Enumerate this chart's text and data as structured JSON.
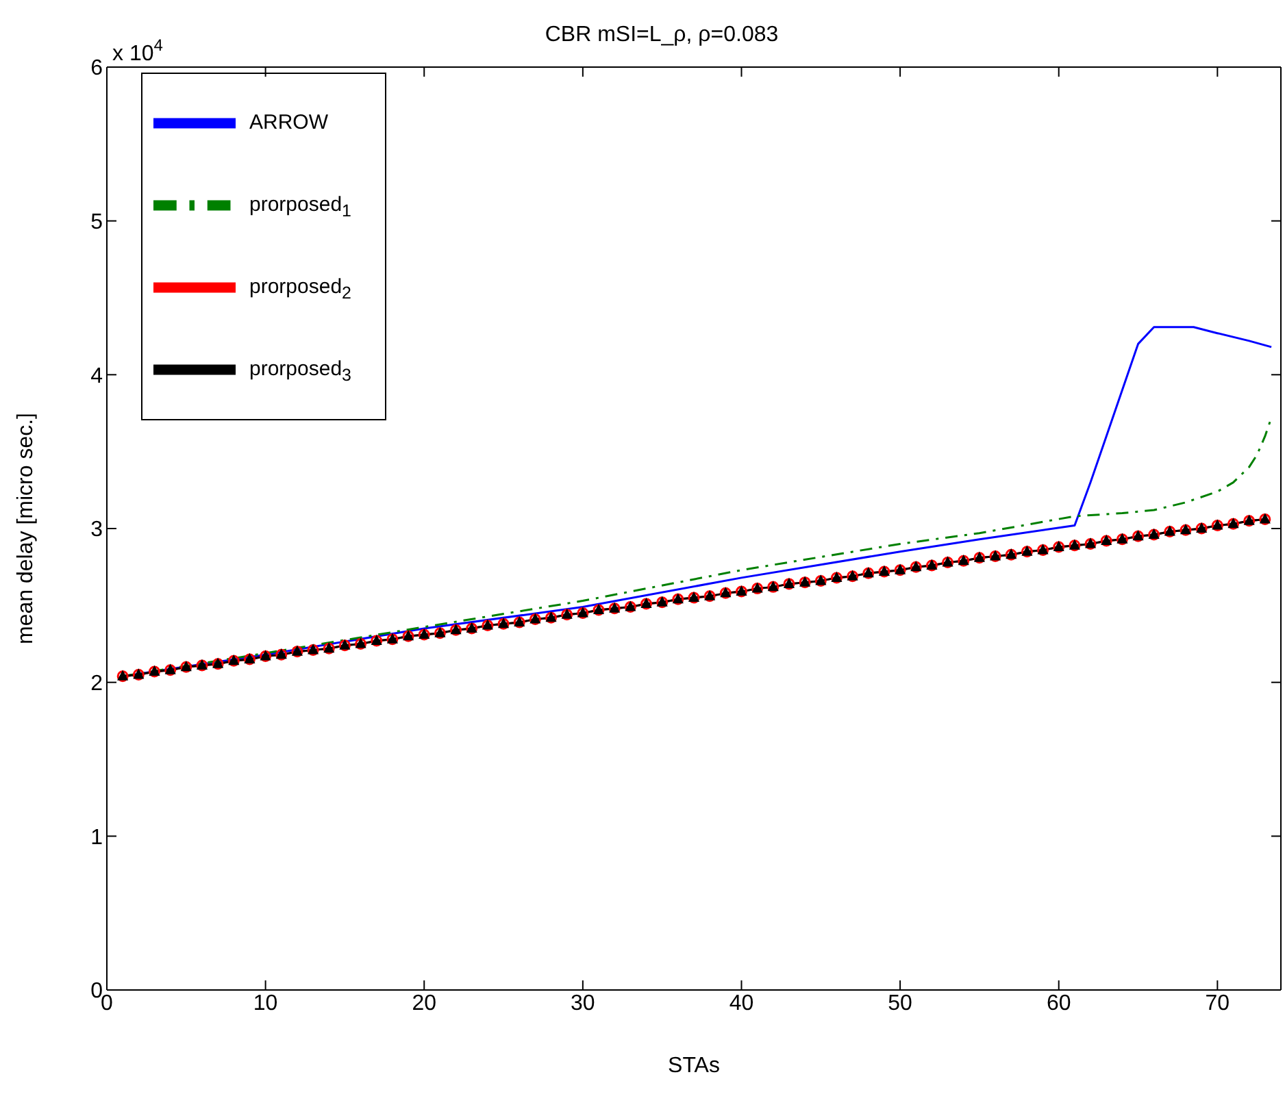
{
  "chart_data": {
    "type": "line",
    "title": "CBR mSI=L_ρ, ρ=0.083",
    "xlabel": "STAs",
    "ylabel": "mean delay [micro sec.]",
    "annotations": [
      "x 10$^{4}$"
    ],
    "xlim": [
      0,
      74
    ],
    "xticks": [
      0,
      10,
      20,
      30,
      40,
      50,
      60,
      70
    ],
    "ylim": [
      0,
      6
    ],
    "yticks": [
      0,
      1,
      2,
      3,
      4,
      5,
      6
    ],
    "grid": false,
    "legend": "top left",
    "series": [
      {
        "name": "ARROW",
        "color": "#0000ff",
        "marker": "none",
        "line_style": "solid",
        "x": [
          1,
          10,
          20,
          30,
          40,
          50,
          55,
          61,
          62,
          63,
          64,
          65,
          66,
          67,
          68.5,
          70,
          72,
          73.4
        ],
        "values": [
          2.04,
          2.18,
          2.35,
          2.49,
          2.68,
          2.85,
          2.93,
          3.02,
          3.3,
          3.6,
          3.9,
          4.2,
          4.31,
          4.31,
          4.31,
          4.27,
          4.22,
          4.18
        ]
      },
      {
        "name": "prorposed$_{1}$",
        "color": "#008000",
        "marker": "none",
        "line_style": "dashed",
        "x": [
          1,
          10,
          20,
          30,
          40,
          50,
          55,
          61,
          64,
          66,
          68,
          70,
          71,
          72,
          72.5,
          73,
          73.4
        ],
        "values": [
          2.04,
          2.19,
          2.36,
          2.53,
          2.73,
          2.9,
          2.97,
          3.08,
          3.1,
          3.12,
          3.17,
          3.24,
          3.3,
          3.4,
          3.48,
          3.6,
          3.72
        ]
      },
      {
        "name": "prorposed$_{2}$",
        "color": "#ff0000",
        "marker": "circle",
        "line_style": "solid",
        "x": [
          1,
          2,
          3,
          4,
          5,
          6,
          7,
          8,
          9,
          10,
          11,
          12,
          13,
          14,
          15,
          16,
          17,
          18,
          19,
          20,
          21,
          22,
          23,
          24,
          25,
          26,
          27,
          28,
          29,
          30,
          31,
          32,
          33,
          34,
          35,
          36,
          37,
          38,
          39,
          40,
          41,
          42,
          43,
          44,
          45,
          46,
          47,
          48,
          49,
          50,
          51,
          52,
          53,
          54,
          55,
          56,
          57,
          58,
          59,
          60,
          61,
          62,
          63,
          64,
          65,
          66,
          67,
          68,
          69,
          70,
          71,
          72,
          73
        ],
        "values": [
          2.04,
          2.05,
          2.07,
          2.08,
          2.1,
          2.11,
          2.12,
          2.14,
          2.15,
          2.17,
          2.18,
          2.2,
          2.21,
          2.22,
          2.24,
          2.25,
          2.27,
          2.28,
          2.3,
          2.31,
          2.32,
          2.34,
          2.35,
          2.37,
          2.38,
          2.39,
          2.41,
          2.42,
          2.44,
          2.45,
          2.47,
          2.48,
          2.49,
          2.51,
          2.52,
          2.54,
          2.55,
          2.56,
          2.58,
          2.59,
          2.61,
          2.62,
          2.64,
          2.65,
          2.66,
          2.68,
          2.69,
          2.71,
          2.72,
          2.73,
          2.75,
          2.76,
          2.78,
          2.79,
          2.81,
          2.82,
          2.83,
          2.85,
          2.86,
          2.88,
          2.89,
          2.9,
          2.92,
          2.93,
          2.95,
          2.96,
          2.98,
          2.99,
          3,
          3.02,
          3.03,
          3.05,
          3.06
        ]
      },
      {
        "name": "prorposed$_{3}$",
        "color": "#000000",
        "marker": "triangle",
        "line_style": "solid",
        "x": [
          1,
          2,
          3,
          4,
          5,
          6,
          7,
          8,
          9,
          10,
          11,
          12,
          13,
          14,
          15,
          16,
          17,
          18,
          19,
          20,
          21,
          22,
          23,
          24,
          25,
          26,
          27,
          28,
          29,
          30,
          31,
          32,
          33,
          34,
          35,
          36,
          37,
          38,
          39,
          40,
          41,
          42,
          43,
          44,
          45,
          46,
          47,
          48,
          49,
          50,
          51,
          52,
          53,
          54,
          55,
          56,
          57,
          58,
          59,
          60,
          61,
          62,
          63,
          64,
          65,
          66,
          67,
          68,
          69,
          70,
          71,
          72,
          73
        ],
        "values": [
          2.04,
          2.05,
          2.07,
          2.08,
          2.1,
          2.11,
          2.12,
          2.14,
          2.15,
          2.17,
          2.18,
          2.2,
          2.21,
          2.22,
          2.24,
          2.25,
          2.27,
          2.28,
          2.3,
          2.31,
          2.32,
          2.34,
          2.35,
          2.37,
          2.38,
          2.39,
          2.41,
          2.42,
          2.44,
          2.45,
          2.47,
          2.48,
          2.49,
          2.51,
          2.52,
          2.54,
          2.55,
          2.56,
          2.58,
          2.59,
          2.61,
          2.62,
          2.64,
          2.65,
          2.66,
          2.68,
          2.69,
          2.71,
          2.72,
          2.73,
          2.75,
          2.76,
          2.78,
          2.79,
          2.81,
          2.82,
          2.83,
          2.85,
          2.86,
          2.88,
          2.89,
          2.9,
          2.92,
          2.93,
          2.95,
          2.96,
          2.98,
          2.99,
          3,
          3.02,
          3.03,
          3.05,
          3.06
        ]
      }
    ]
  }
}
